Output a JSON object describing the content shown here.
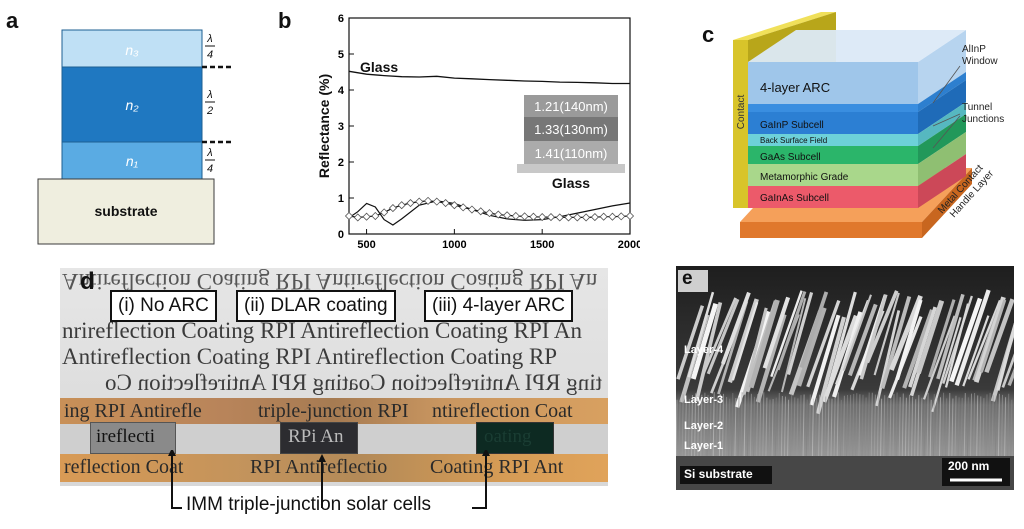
{
  "panel_a": {
    "letter": "a",
    "layers": [
      {
        "label": "n₃",
        "fraction": "λ/4",
        "color": "#bfe0f5"
      },
      {
        "label": "n₂",
        "fraction": "λ/2",
        "color": "#1f78c1"
      },
      {
        "label": "n₁",
        "fraction": "λ/4",
        "color": "#5aabe3"
      }
    ],
    "substrate_label": "substrate",
    "substrate_color": "#efeedf"
  },
  "panel_b": {
    "letter": "b",
    "ylabel": "Reflectance (%)",
    "curve_label": "Glass",
    "stack_layers": [
      "1.21(140nm)",
      "1.33(130nm)",
      "1.41(110nm)"
    ],
    "stack_base_label": "Glass"
  },
  "chart_data": {
    "type": "line",
    "title": "",
    "xlabel": "",
    "ylabel": "Reflectance (%)",
    "xlim": [
      400,
      2000
    ],
    "ylim": [
      0,
      6
    ],
    "xticks": [
      500,
      1000,
      1500,
      2000
    ],
    "yticks": [
      0,
      1,
      2,
      3,
      4,
      5,
      6
    ],
    "series": [
      {
        "name": "Glass",
        "x": [
          400,
          500,
          600,
          700,
          800,
          900,
          1000,
          1100,
          1200,
          1300,
          1400,
          1500,
          1600,
          1700,
          1800,
          1900,
          2000
        ],
        "y": [
          4.52,
          4.44,
          4.4,
          4.37,
          4.36,
          4.38,
          4.33,
          4.31,
          4.29,
          4.27,
          4.25,
          4.24,
          4.22,
          4.21,
          4.2,
          4.18,
          4.18
        ]
      },
      {
        "name": "",
        "x": [
          400,
          450,
          500,
          550,
          600,
          650,
          700,
          800,
          900,
          1000,
          1100,
          1200,
          1300,
          1400,
          1500,
          1600,
          1700,
          1800,
          1900,
          2000
        ],
        "y": [
          0.45,
          0.62,
          0.85,
          0.75,
          0.4,
          0.25,
          0.42,
          0.8,
          0.92,
          0.85,
          0.68,
          0.52,
          0.42,
          0.38,
          0.4,
          0.48,
          0.58,
          0.68,
          0.78,
          0.86
        ]
      },
      {
        "name": "",
        "marker": "diamond",
        "x": [
          400,
          450,
          500,
          550,
          600,
          650,
          700,
          750,
          800,
          850,
          900,
          950,
          1000,
          1050,
          1100,
          1150,
          1200,
          1250,
          1300,
          1350,
          1400,
          1450,
          1500,
          1550,
          1600,
          1650,
          1700,
          1750,
          1800,
          1850,
          1900,
          1950,
          2000
        ],
        "y": [
          0.5,
          0.46,
          0.48,
          0.5,
          0.6,
          0.72,
          0.8,
          0.86,
          0.9,
          0.92,
          0.9,
          0.86,
          0.8,
          0.74,
          0.68,
          0.63,
          0.58,
          0.54,
          0.52,
          0.5,
          0.49,
          0.48,
          0.47,
          0.47,
          0.46,
          0.46,
          0.46,
          0.46,
          0.47,
          0.48,
          0.48,
          0.49,
          0.5
        ]
      }
    ]
  },
  "panel_c": {
    "letter": "c",
    "contact_label": "Contact",
    "arc_label": "4-layer ARC",
    "layers": [
      {
        "label": "GaInP Subcell",
        "color": "#2c7fd3"
      },
      {
        "label": "Back Surface Field",
        "color": "#6dd1d9"
      },
      {
        "label": "GaAs Subcell",
        "color": "#2bb56a"
      },
      {
        "label": "Metamorphic Grade",
        "color": "#a9d78b"
      },
      {
        "label": "GaInAs Subcell",
        "color": "#ec5a6a"
      }
    ],
    "handle_label_1": "Metal Contact",
    "handle_label_2": "Handle Layer",
    "callouts": [
      {
        "lines": [
          "AlInP",
          "Window"
        ]
      },
      {
        "lines": [
          "Tunnel",
          "Junctions"
        ]
      }
    ]
  },
  "panel_d": {
    "letter": "d",
    "labels": [
      "(i) No ARC",
      "(ii) DLAR coating",
      "(iii) 4-layer ARC"
    ],
    "background_text": [
      "Antireflection Coating RPI Antireflection Coating RPI An",
      "nrireflection Coating RPI Antireflection Coating RPI An",
      "Antireflection Coating RPI Antireflection Coating RP",
      "ting RPI Antireflection Coating RPI Antireflection Co"
    ],
    "strip_text_top": [
      "ing RPI Antirefle",
      "triple-junction RPI",
      "ntireflection Coat"
    ],
    "strip_text_bottom": [
      "reflection Coat",
      "RPI Antireflectio",
      "Coating RPI Ant"
    ],
    "cell_text": [
      "ireflecti",
      "RPi An",
      "oating"
    ],
    "caption": "IMM triple-junction solar cells"
  },
  "panel_e": {
    "letter": "e",
    "layer_labels": [
      "Layer-4",
      "Layer-3",
      "Layer-2",
      "Layer-1"
    ],
    "substrate_label": "Si substrate",
    "scalebar_label": "200 nm"
  }
}
